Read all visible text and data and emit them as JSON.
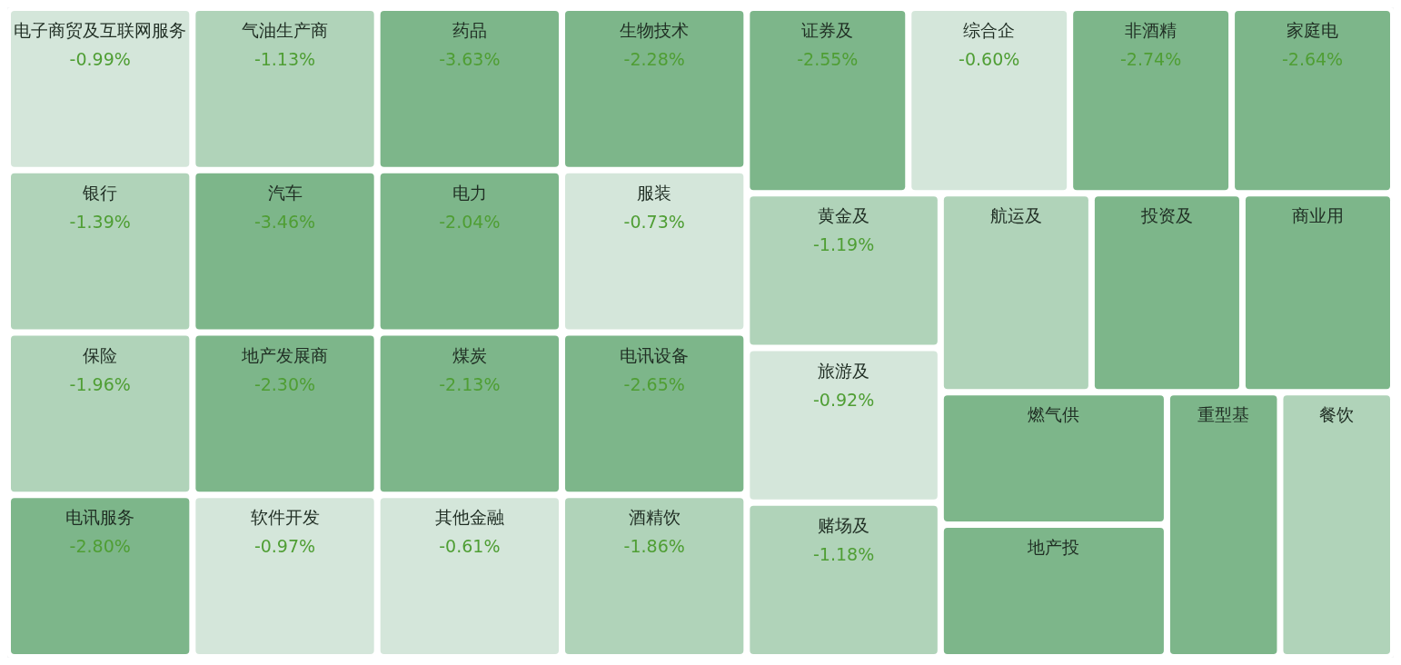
{
  "chart_data": {
    "type": "other",
    "categories": [
      "电子商贸及互联网服务",
      "银行",
      "保险",
      "电讯服务",
      "气油生产商",
      "汽车",
      "地产发展商",
      "软件开发",
      "药品",
      "电力",
      "煤炭",
      "其他金融",
      "生物技术",
      "服装",
      "电讯设备",
      "酒精饮",
      "证券及",
      "综合企",
      "非酒精",
      "家庭电",
      "黄金及",
      "旅游及",
      "赌场及",
      "航运及",
      "投资及",
      "商业用",
      "燃气供",
      "地产投",
      "重型基",
      "餐饮"
    ],
    "values": [
      -0.99,
      -1.39,
      -1.96,
      -2.8,
      -1.13,
      -3.46,
      -2.3,
      -0.97,
      -3.63,
      -2.04,
      -2.13,
      -0.61,
      -2.28,
      -0.73,
      -2.65,
      -1.86,
      -2.55,
      -0.6,
      -2.74,
      -2.64,
      -1.19,
      -0.92,
      -1.18,
      null,
      null,
      null,
      null,
      null,
      null,
      null
    ],
    "value_labels": [
      "-0.99%",
      "-1.39%",
      "-1.96%",
      "-2.80%",
      "-1.13%",
      "-3.46%",
      "-2.30%",
      "-0.97%",
      "-3.63%",
      "-2.04%",
      "-2.13%",
      "-0.61%",
      "-2.28%",
      "-0.73%",
      "-2.65%",
      "-1.86%",
      "-2.55%",
      "-0.60%",
      "-2.74%",
      "-2.64%",
      "-1.19%",
      "-0.92%",
      "-1.18%",
      null,
      null,
      null,
      null,
      null,
      null,
      null
    ],
    "colors": [
      "#d4e6da",
      "#b0d3b9",
      "#b0d3b9",
      "#7db68a",
      "#b0d3b9",
      "#7db68a",
      "#7db68a",
      "#d4e6da",
      "#7db68a",
      "#7db68a",
      "#7db68a",
      "#d4e6da",
      "#7db68a",
      "#d4e6da",
      "#7db68a",
      "#b0d3b9",
      "#7db68a",
      "#d4e6da",
      "#7db68a",
      "#7db68a",
      "#b0d3b9",
      "#d4e6da",
      "#b0d3b9",
      "#b0d3b9",
      "#7db68a",
      "#7db68a",
      "#7db68a",
      "#7db68a",
      "#7db68a",
      "#b0d3b9"
    ]
  }
}
